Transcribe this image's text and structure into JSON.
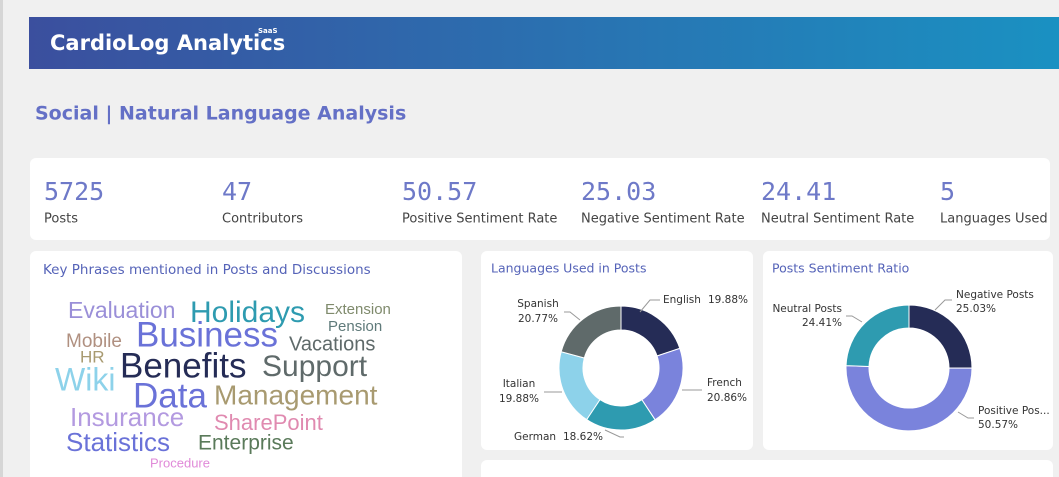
{
  "header": {
    "title": "CardioLog Analytics",
    "badge": "SaaS"
  },
  "page_title": "Social | Natural Language Analysis",
  "kpis": [
    {
      "value": 5725,
      "label": "Posts"
    },
    {
      "value": 47,
      "label": "Contributors"
    },
    {
      "value": 50.57,
      "label": "Positive Sentiment Rate"
    },
    {
      "value": 25.03,
      "label": "Negative Sentiment Rate"
    },
    {
      "value": 24.41,
      "label": "Neutral Sentiment Rate"
    },
    {
      "value": 5,
      "label": "Languages Used"
    }
  ],
  "word_cloud": {
    "title": "Key Phrases mentioned in Posts and Discussions",
    "words": [
      {
        "text": "Evaluation",
        "color": "#9a8fd8"
      },
      {
        "text": "Holidays",
        "color": "#2e9bb0"
      },
      {
        "text": "Extension",
        "color": "#7f8a6c"
      },
      {
        "text": "Pension",
        "color": "#5f7a7a"
      },
      {
        "text": "Business",
        "color": "#6a72d8"
      },
      {
        "text": "Mobile",
        "color": "#b09080"
      },
      {
        "text": "Vacations",
        "color": "#5f6a6a"
      },
      {
        "text": "HR",
        "color": "#a89a70"
      },
      {
        "text": "Benefits",
        "color": "#252c56"
      },
      {
        "text": "Support",
        "color": "#5f6a6a"
      },
      {
        "text": "Wiki",
        "color": "#8dd2ea"
      },
      {
        "text": "Data",
        "color": "#6a72d8"
      },
      {
        "text": "Management",
        "color": "#a89a70"
      },
      {
        "text": "Insurance",
        "color": "#b39ae0"
      },
      {
        "text": "SharePoint",
        "color": "#e08ab0"
      },
      {
        "text": "Statistics",
        "color": "#6a72d8"
      },
      {
        "text": "Enterprise",
        "color": "#5a7a5a"
      },
      {
        "text": "Procedure",
        "color": "#e08ad8"
      }
    ]
  },
  "chart_data": [
    {
      "type": "donut",
      "title": "Languages Used in Posts",
      "categories": [
        "English",
        "French",
        "German",
        "Italian",
        "Spanish"
      ],
      "values": [
        19.88,
        20.86,
        18.62,
        19.88,
        20.77
      ],
      "value_labels": [
        "19.88%",
        "20.86%",
        "18.62%",
        "19.88%",
        "20.77%"
      ],
      "colors": [
        "#252c56",
        "#7a83dc",
        "#2e9bb0",
        "#8dd2ea",
        "#5f6a6a"
      ]
    },
    {
      "type": "donut",
      "title": "Posts Sentiment Ratio",
      "categories": [
        "Negative Posts",
        "Positive Pos...",
        "Neutral Posts"
      ],
      "values": [
        25.03,
        50.57,
        24.41
      ],
      "value_labels": [
        "25.03%",
        "50.57%",
        "24.41%"
      ],
      "colors": [
        "#252c56",
        "#7a83dc",
        "#2e9bb0"
      ]
    }
  ]
}
